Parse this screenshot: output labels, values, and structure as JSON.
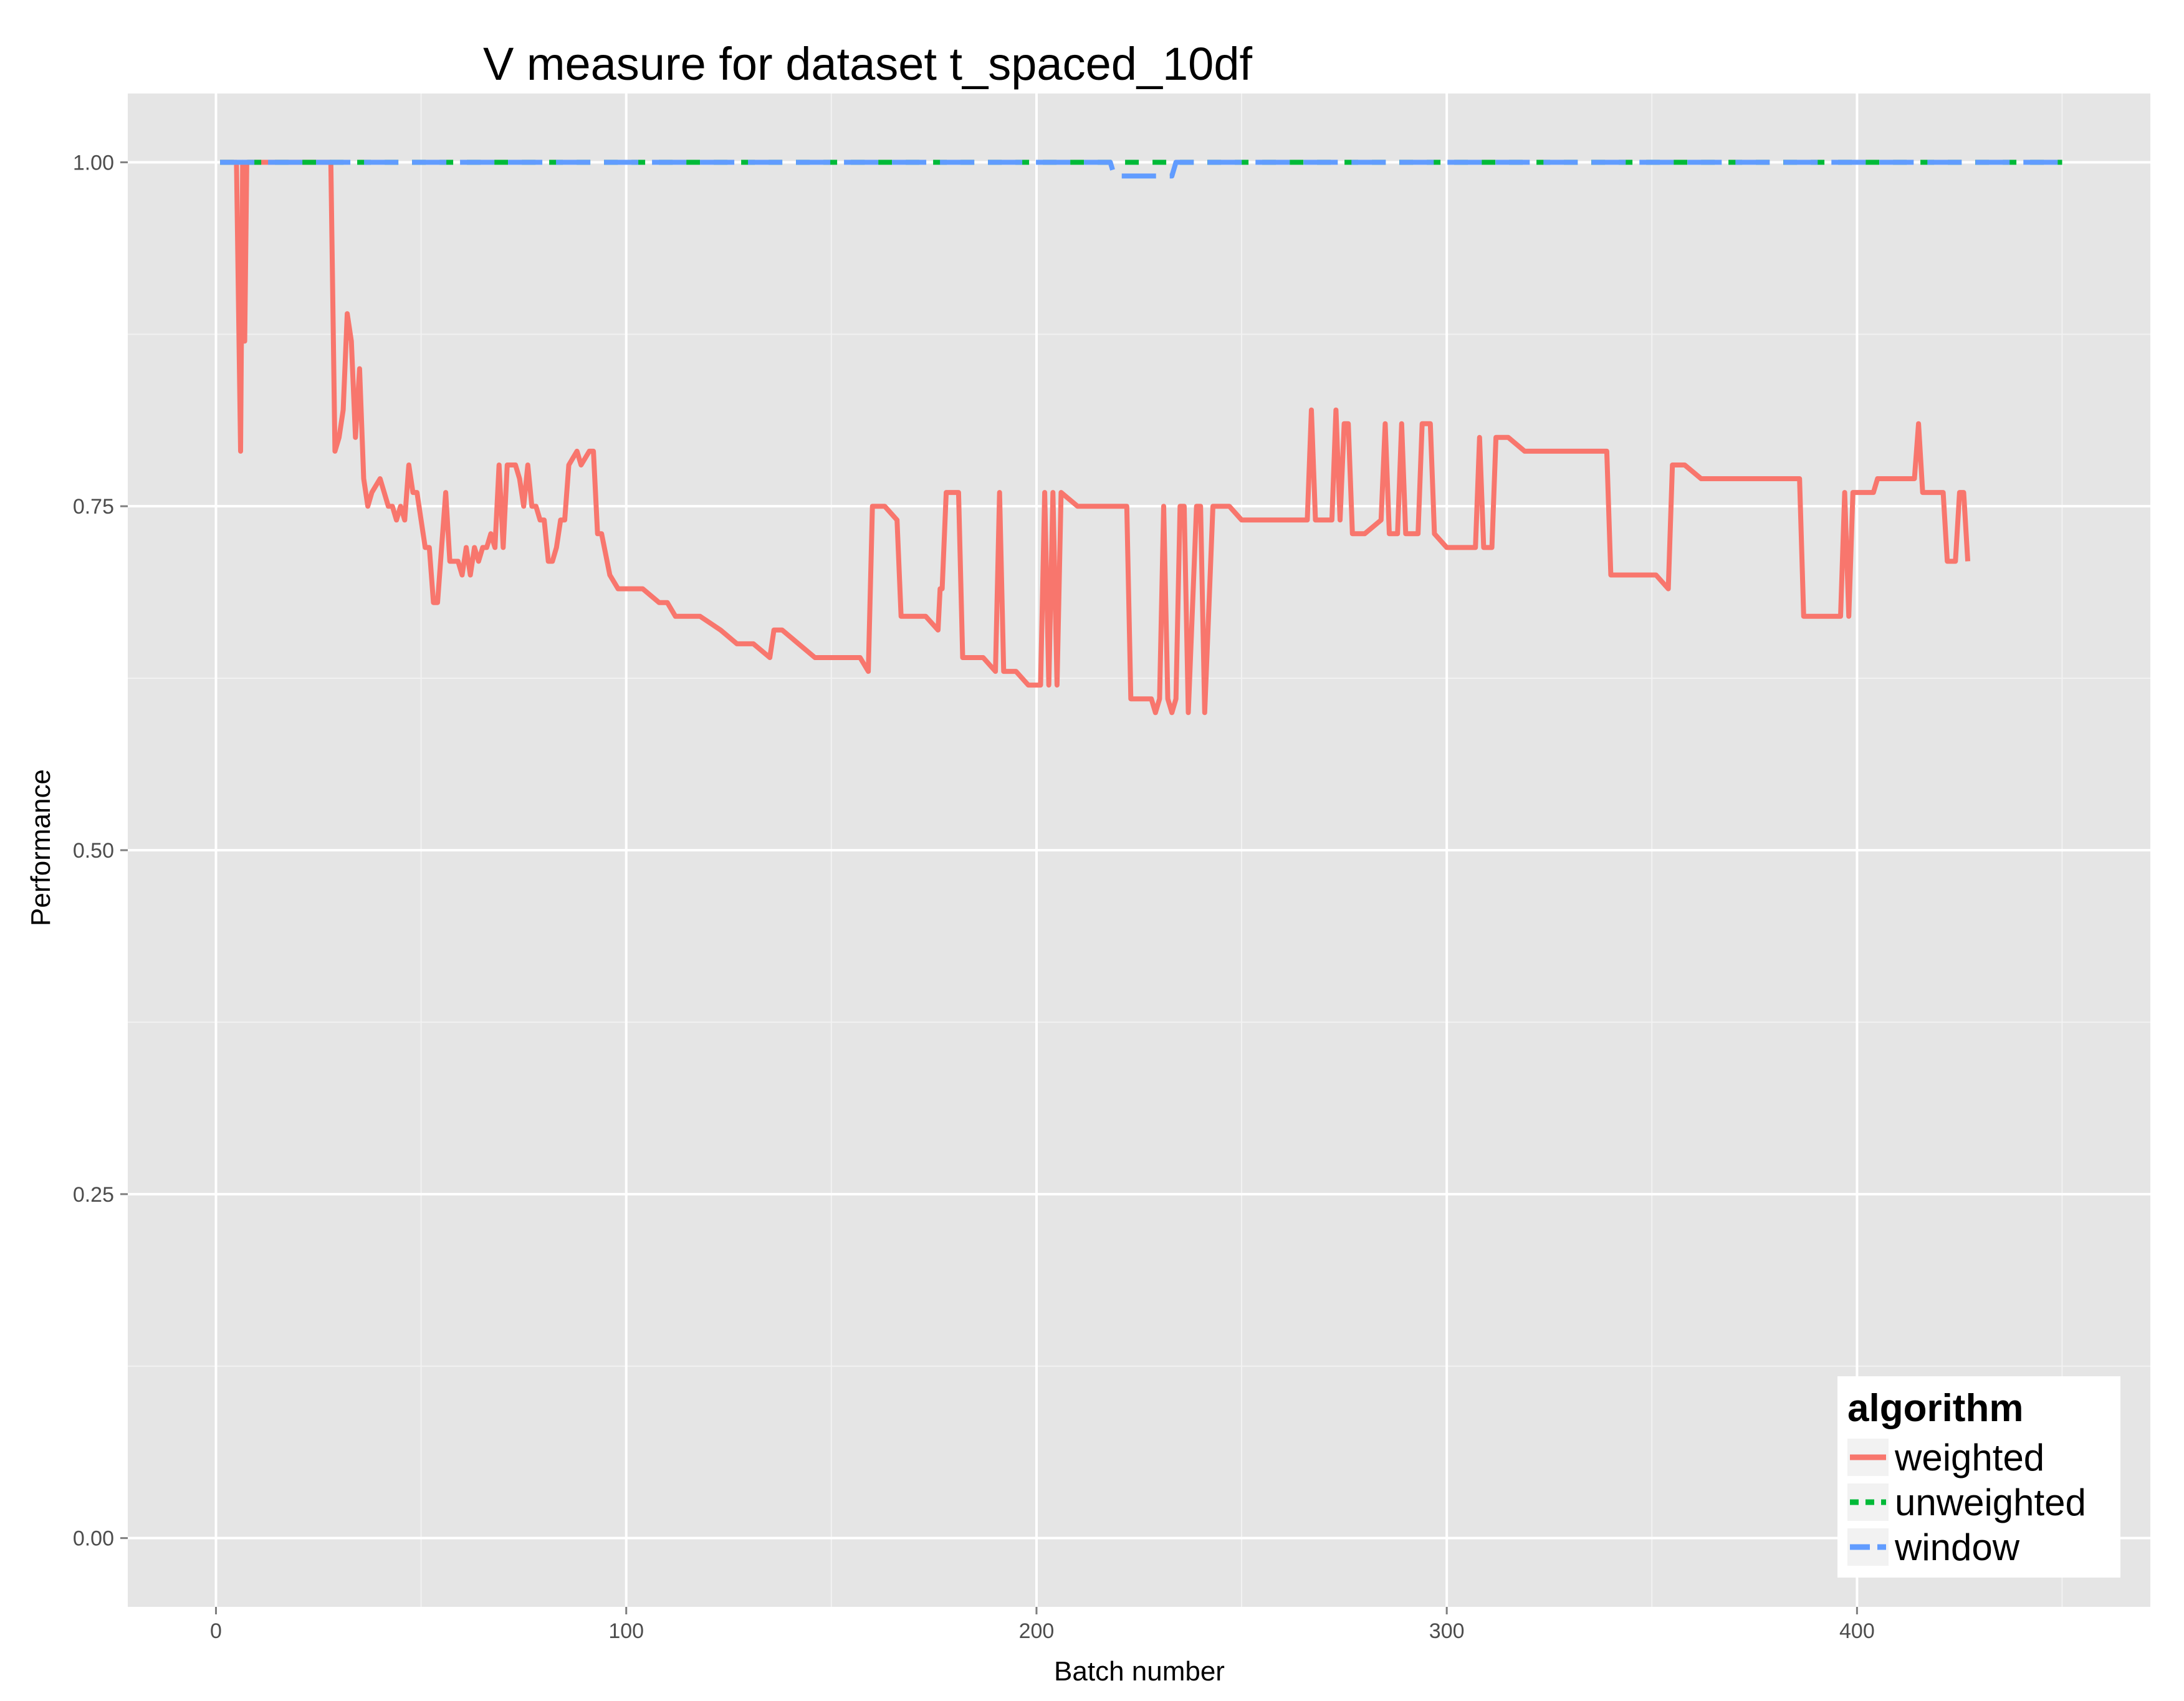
{
  "chart_data": {
    "type": "line",
    "title": "V measure for dataset t_spaced_10df",
    "xlabel": "Batch number",
    "ylabel": "Performance",
    "xlim": [
      -21.5,
      471.5
    ],
    "ylim": [
      -0.05,
      1.05
    ],
    "x_ticks": [
      0,
      100,
      200,
      300,
      400
    ],
    "x_tick_labels": [
      "0",
      "100",
      "200",
      "300",
      "400"
    ],
    "y_ticks": [
      0,
      0.25,
      0.5,
      0.75,
      1.0
    ],
    "y_tick_labels": [
      "0.00",
      "0.25",
      "0.50",
      "0.75",
      "1.00"
    ],
    "grid": true,
    "legend": {
      "title": "algorithm",
      "position": "bottom-right"
    },
    "series": [
      {
        "name": "weighted",
        "color": "#F8766D",
        "dash": "solid",
        "points": [
          [
            1,
            1.0
          ],
          [
            5,
            1.0
          ],
          [
            6,
            0.79
          ],
          [
            6.5,
            1.0
          ],
          [
            7,
            0.87
          ],
          [
            7.5,
            1.0
          ],
          [
            8,
            1.0
          ],
          [
            28,
            1.0
          ],
          [
            29,
            0.79
          ],
          [
            30,
            0.8
          ],
          [
            31,
            0.82
          ],
          [
            32,
            0.89
          ],
          [
            33,
            0.87
          ],
          [
            34,
            0.8
          ],
          [
            35,
            0.85
          ],
          [
            36,
            0.77
          ],
          [
            37,
            0.75
          ],
          [
            38,
            0.76
          ],
          [
            40,
            0.77
          ],
          [
            42,
            0.75
          ],
          [
            43,
            0.75
          ],
          [
            44,
            0.74
          ],
          [
            45,
            0.75
          ],
          [
            46,
            0.74
          ],
          [
            47,
            0.78
          ],
          [
            48,
            0.76
          ],
          [
            49,
            0.76
          ],
          [
            50,
            0.74
          ],
          [
            51,
            0.72
          ],
          [
            52,
            0.72
          ],
          [
            53,
            0.68
          ],
          [
            54,
            0.68
          ],
          [
            55,
            0.72
          ],
          [
            56,
            0.76
          ],
          [
            57,
            0.71
          ],
          [
            58,
            0.71
          ],
          [
            59,
            0.71
          ],
          [
            60,
            0.7
          ],
          [
            61,
            0.72
          ],
          [
            62,
            0.7
          ],
          [
            63,
            0.72
          ],
          [
            64,
            0.71
          ],
          [
            65,
            0.72
          ],
          [
            66,
            0.72
          ],
          [
            67,
            0.73
          ],
          [
            68,
            0.72
          ],
          [
            69,
            0.78
          ],
          [
            70,
            0.72
          ],
          [
            71,
            0.78
          ],
          [
            72,
            0.78
          ],
          [
            73,
            0.78
          ],
          [
            74,
            0.77
          ],
          [
            75,
            0.75
          ],
          [
            76,
            0.78
          ],
          [
            77,
            0.75
          ],
          [
            78,
            0.75
          ],
          [
            79,
            0.74
          ],
          [
            80,
            0.74
          ],
          [
            81,
            0.71
          ],
          [
            82,
            0.71
          ],
          [
            83,
            0.72
          ],
          [
            84,
            0.74
          ],
          [
            85,
            0.74
          ],
          [
            86,
            0.78
          ],
          [
            88,
            0.79
          ],
          [
            89,
            0.78
          ],
          [
            91,
            0.79
          ],
          [
            92,
            0.79
          ],
          [
            93,
            0.73
          ],
          [
            94,
            0.73
          ],
          [
            96,
            0.7
          ],
          [
            98,
            0.69
          ],
          [
            100,
            0.69
          ],
          [
            104,
            0.69
          ],
          [
            108,
            0.68
          ],
          [
            110,
            0.68
          ],
          [
            112,
            0.67
          ],
          [
            115,
            0.67
          ],
          [
            118,
            0.67
          ],
          [
            123,
            0.66
          ],
          [
            127,
            0.65
          ],
          [
            131,
            0.65
          ],
          [
            135,
            0.64
          ],
          [
            136,
            0.66
          ],
          [
            138,
            0.66
          ],
          [
            142,
            0.65
          ],
          [
            146,
            0.64
          ],
          [
            150,
            0.64
          ],
          [
            154,
            0.64
          ],
          [
            157,
            0.64
          ],
          [
            159,
            0.63
          ],
          [
            160,
            0.75
          ],
          [
            163,
            0.75
          ],
          [
            166,
            0.74
          ],
          [
            167,
            0.67
          ],
          [
            170,
            0.67
          ],
          [
            173,
            0.67
          ],
          [
            176,
            0.66
          ],
          [
            176.5,
            0.69
          ],
          [
            177,
            0.69
          ],
          [
            178,
            0.76
          ],
          [
            181,
            0.76
          ],
          [
            182,
            0.64
          ],
          [
            185,
            0.64
          ],
          [
            187,
            0.64
          ],
          [
            190,
            0.63
          ],
          [
            191,
            0.76
          ],
          [
            192,
            0.63
          ],
          [
            195,
            0.63
          ],
          [
            198,
            0.62
          ],
          [
            201,
            0.62
          ],
          [
            202,
            0.76
          ],
          [
            203,
            0.62
          ],
          [
            204,
            0.76
          ],
          [
            205,
            0.62
          ],
          [
            206,
            0.76
          ],
          [
            210,
            0.75
          ],
          [
            214,
            0.75
          ],
          [
            218,
            0.75
          ],
          [
            220,
            0.75
          ],
          [
            222,
            0.75
          ],
          [
            223,
            0.61
          ],
          [
            224,
            0.61
          ],
          [
            226,
            0.61
          ],
          [
            228,
            0.61
          ],
          [
            229,
            0.6
          ],
          [
            230,
            0.61
          ],
          [
            231,
            0.75
          ],
          [
            232,
            0.61
          ],
          [
            233,
            0.6
          ],
          [
            234,
            0.61
          ],
          [
            235,
            0.75
          ],
          [
            236,
            0.75
          ],
          [
            237,
            0.6
          ],
          [
            239,
            0.75
          ],
          [
            240,
            0.75
          ],
          [
            241,
            0.6
          ],
          [
            243,
            0.75
          ],
          [
            244,
            0.75
          ],
          [
            247,
            0.75
          ],
          [
            250,
            0.74
          ],
          [
            254,
            0.74
          ],
          [
            258,
            0.74
          ],
          [
            262,
            0.74
          ],
          [
            266,
            0.74
          ],
          [
            267,
            0.82
          ],
          [
            268,
            0.74
          ],
          [
            270,
            0.74
          ],
          [
            272,
            0.74
          ],
          [
            273,
            0.82
          ],
          [
            274,
            0.74
          ],
          [
            275,
            0.81
          ],
          [
            276,
            0.81
          ],
          [
            277,
            0.73
          ],
          [
            280,
            0.73
          ],
          [
            284,
            0.74
          ],
          [
            285,
            0.81
          ],
          [
            286,
            0.73
          ],
          [
            288,
            0.73
          ],
          [
            289,
            0.81
          ],
          [
            290,
            0.73
          ],
          [
            293,
            0.73
          ],
          [
            294,
            0.81
          ],
          [
            296,
            0.81
          ],
          [
            297,
            0.73
          ],
          [
            300,
            0.72
          ],
          [
            304,
            0.72
          ],
          [
            307,
            0.72
          ],
          [
            308,
            0.8
          ],
          [
            309,
            0.72
          ],
          [
            311,
            0.72
          ],
          [
            312,
            0.8
          ],
          [
            315,
            0.8
          ],
          [
            319,
            0.79
          ],
          [
            323,
            0.79
          ],
          [
            327,
            0.79
          ],
          [
            331,
            0.79
          ],
          [
            335,
            0.79
          ],
          [
            339,
            0.79
          ],
          [
            340,
            0.7
          ],
          [
            343,
            0.7
          ],
          [
            347,
            0.7
          ],
          [
            351,
            0.7
          ],
          [
            354,
            0.69
          ],
          [
            355,
            0.78
          ],
          [
            358,
            0.78
          ],
          [
            362,
            0.77
          ],
          [
            366,
            0.77
          ],
          [
            370,
            0.77
          ],
          [
            374,
            0.77
          ],
          [
            378,
            0.77
          ],
          [
            382,
            0.77
          ],
          [
            386,
            0.77
          ],
          [
            387,
            0.67
          ],
          [
            392,
            0.67
          ],
          [
            396,
            0.67
          ],
          [
            397,
            0.76
          ],
          [
            398,
            0.67
          ],
          [
            399,
            0.76
          ],
          [
            402,
            0.76
          ],
          [
            404,
            0.76
          ],
          [
            405,
            0.77
          ],
          [
            410,
            0.77
          ],
          [
            414,
            0.77
          ],
          [
            415,
            0.81
          ],
          [
            416,
            0.76
          ],
          [
            420,
            0.76
          ],
          [
            421,
            0.76
          ],
          [
            422,
            0.71
          ],
          [
            424,
            0.71
          ],
          [
            425,
            0.76
          ],
          [
            426,
            0.76
          ],
          [
            427,
            0.71
          ]
        ]
      },
      {
        "name": "unweighted",
        "color": "#00BA38",
        "dash": "short-dash",
        "points": [
          [
            1,
            1.0
          ],
          [
            218,
            1.0
          ],
          [
            219,
            1.0
          ],
          [
            233,
            1.0
          ],
          [
            234,
            1.0
          ],
          [
            450,
            1.0
          ]
        ]
      },
      {
        "name": "window",
        "color": "#619CFF",
        "dash": "long-dash",
        "points": [
          [
            1,
            1.0
          ],
          [
            218,
            1.0
          ],
          [
            219,
            0.99
          ],
          [
            233,
            0.99
          ],
          [
            234,
            1.0
          ],
          [
            450,
            1.0
          ]
        ]
      }
    ]
  }
}
